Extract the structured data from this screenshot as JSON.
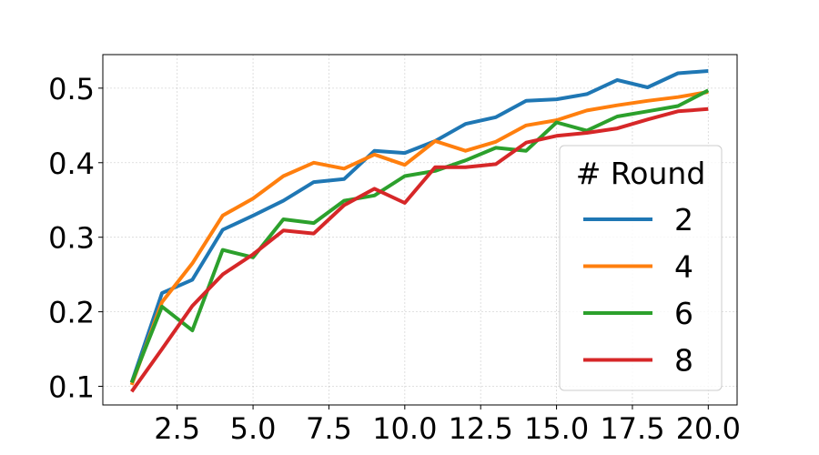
{
  "chart_data": {
    "type": "line",
    "title": "",
    "xlabel": "",
    "ylabel": "",
    "x": [
      1,
      2,
      3,
      4,
      5,
      6,
      7,
      8,
      9,
      10,
      11,
      12,
      13,
      14,
      15,
      16,
      17,
      18,
      19,
      20
    ],
    "xlim": [
      0.05,
      20.95
    ],
    "ylim": [
      0.075,
      0.545
    ],
    "x_ticks": [
      2.5,
      5.0,
      7.5,
      10.0,
      12.5,
      15.0,
      17.5,
      20.0
    ],
    "x_tick_labels": [
      "2.5",
      "5.0",
      "7.5",
      "10.0",
      "12.5",
      "15.0",
      "17.5",
      "20.0"
    ],
    "y_ticks": [
      0.1,
      0.2,
      0.3,
      0.4,
      0.5
    ],
    "y_tick_labels": [
      "0.1",
      "0.2",
      "0.3",
      "0.4",
      "0.5"
    ],
    "grid": true,
    "legend": {
      "title": "# Round",
      "placement": "lower-right"
    },
    "series": [
      {
        "name": "2",
        "color": "#1f77b4",
        "values": [
          0.105,
          0.225,
          0.243,
          0.31,
          0.329,
          0.349,
          0.374,
          0.378,
          0.416,
          0.413,
          0.429,
          0.452,
          0.461,
          0.483,
          0.485,
          0.492,
          0.511,
          0.501,
          0.52,
          0.523
        ]
      },
      {
        "name": "4",
        "color": "#ff7f0e",
        "values": [
          0.102,
          0.213,
          0.265,
          0.329,
          0.352,
          0.382,
          0.4,
          0.392,
          0.411,
          0.397,
          0.429,
          0.416,
          0.428,
          0.45,
          0.457,
          0.47,
          0.477,
          0.483,
          0.488,
          0.495
        ]
      },
      {
        "name": "6",
        "color": "#2ca02c",
        "values": [
          0.105,
          0.207,
          0.175,
          0.283,
          0.273,
          0.324,
          0.319,
          0.349,
          0.356,
          0.382,
          0.389,
          0.403,
          0.42,
          0.416,
          0.454,
          0.443,
          0.462,
          0.469,
          0.476,
          0.497
        ]
      },
      {
        "name": "8",
        "color": "#d62728",
        "values": [
          0.093,
          0.15,
          0.208,
          0.25,
          0.277,
          0.309,
          0.305,
          0.343,
          0.365,
          0.346,
          0.394,
          0.394,
          0.398,
          0.427,
          0.436,
          0.44,
          0.446,
          0.458,
          0.469,
          0.472
        ]
      }
    ]
  }
}
